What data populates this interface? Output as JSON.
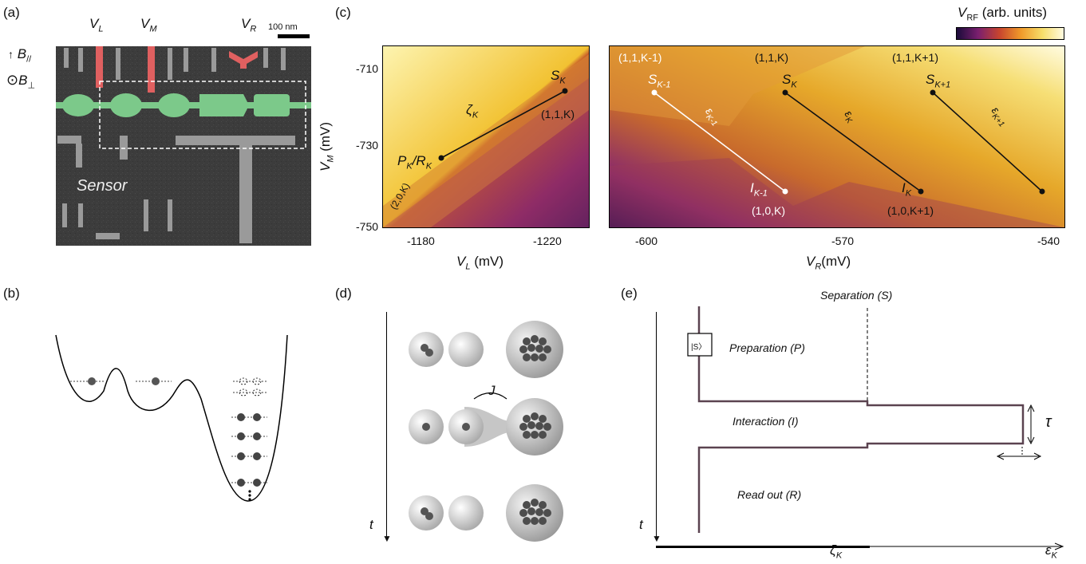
{
  "panels": {
    "a": "(a)",
    "b": "(b)",
    "c": "(c)",
    "d": "(d)",
    "e": "(e)"
  },
  "panel_a": {
    "gate_vl": "V",
    "gate_vl_sub": "L",
    "gate_vm": "V",
    "gate_vm_sub": "M",
    "gate_vr": "V",
    "gate_vr_sub": "R",
    "scale_bar": "100 nm",
    "b_parallel": "B",
    "b_parallel_sub": "//",
    "b_perp": "B",
    "b_perp_sub": "⊥",
    "sensor": "Sensor"
  },
  "colorbar": {
    "label_main": "V",
    "label_sub": "RF",
    "label_rest": " (arb. units)"
  },
  "chart_data": [
    {
      "type": "heatmap",
      "xlabel": "V_L (mV)",
      "ylabel": "V_M (mV)",
      "xlim": [
        -1170,
        -1230
      ],
      "ylim": [
        -750,
        -705
      ],
      "x_ticks": [
        "-1180",
        "-1220"
      ],
      "y_ticks": [
        "-710",
        "-730",
        "-750"
      ],
      "annotations": [
        "S_K",
        "(1,1,K)",
        "P_K/R_K",
        "(2,0,K)",
        "ζ_K"
      ]
    },
    {
      "type": "heatmap",
      "xlabel": "V_R(mV)",
      "xlim": [
        -610,
        -540
      ],
      "ylim": [
        -750,
        -705
      ],
      "x_ticks": [
        "-600",
        "-570",
        "-540"
      ],
      "annotations": [
        "(1,1,K-1)",
        "(1,1,K)",
        "(1,1,K+1)",
        "S_K-1",
        "S_K",
        "S_K+1",
        "I_K-1",
        "I_K",
        "(1,0,K)",
        "(1,0,K+1)",
        "ε_K-1",
        "ε_K",
        "ε_K+1"
      ],
      "colorbar": "V_RF (arb. units)"
    }
  ],
  "heat_a": {
    "xlabel_main": "V",
    "xlabel_sub": "L",
    "xlabel_rest": " (mV)",
    "ylabel_main": "V",
    "ylabel_sub": "M",
    "ylabel_rest": " (mV)",
    "xt1": "-1180",
    "xt2": "-1220",
    "yt1": "-710",
    "yt2": "-730",
    "yt3": "-750",
    "sk": "S",
    "sk_sub": "K",
    "state_11k": "(1,1,K)",
    "pk": "P",
    "pk_sub": "K",
    "rk": "/R",
    "rk_sub": "K",
    "state_20k": "(2,0,K)",
    "zeta": "ζ",
    "zeta_sub": "K"
  },
  "heat_b": {
    "xlabel_main": "V",
    "xlabel_sub": "R",
    "xlabel_rest": "(mV)",
    "xt1": "-600",
    "xt2": "-570",
    "xt3": "-540",
    "s_km1": "(1,1,K-1)",
    "s_k": "(1,1,K)",
    "s_kp1": "(1,1,K+1)",
    "S": "S",
    "sub_km1": "K-1",
    "sub_k": "K",
    "sub_kp1": "K+1",
    "I": "I",
    "s_10k": "(1,0,K)",
    "s_10kp1": "(1,0,K+1)",
    "eps": "ε"
  },
  "panel_d": {
    "t": "t",
    "J": "J"
  },
  "panel_e": {
    "separation": "Separation (S)",
    "preparation": "Preparation (P)",
    "interaction": "Interaction (I)",
    "readout": "Read out (R)",
    "ket": "|S〉",
    "tau": "τ",
    "t": "t",
    "zeta": "ζ",
    "zeta_sub": "K",
    "eps": "ε",
    "eps_sub": "K"
  },
  "colors": {
    "pink": "#f9d6e2",
    "sem_red": "#e06060",
    "sem_green": "#7cc98a"
  }
}
